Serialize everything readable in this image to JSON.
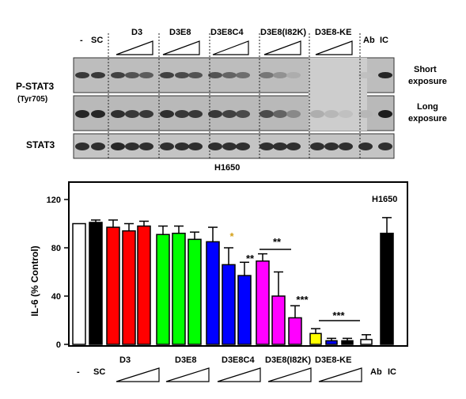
{
  "blot": {
    "lane_header": {
      "neg": "-",
      "sc": "SC",
      "groups": [
        "D3",
        "D3E8",
        "D3E8C4",
        "D3E8(I82K)",
        "D3E8-KE"
      ],
      "ab": "Ab",
      "ic": "IC"
    },
    "row_labels": {
      "pstat3": "P-STAT3",
      "tyr": "(Tyr705)",
      "stat3": "STAT3"
    },
    "exposure_labels": {
      "short_1": "Short",
      "short_2": "exposure",
      "long_1": "Long",
      "long_2": "exposure"
    },
    "cell_line": "H1650",
    "lanes": [
      "-",
      "SC",
      "D3",
      "D3",
      "D3",
      "D3E8",
      "D3E8",
      "D3E8",
      "D3E8C4",
      "D3E8C4",
      "D3E8C4",
      "D3E8(I82K)",
      "D3E8(I82K)",
      "D3E8(I82K)",
      "D3E8-KE",
      "D3E8-KE",
      "D3E8-KE",
      "Ab",
      "IC"
    ],
    "pstat3_short_intensity": [
      0.8,
      0.8,
      0.75,
      0.65,
      0.6,
      0.75,
      0.7,
      0.65,
      0.65,
      0.55,
      0.5,
      0.45,
      0.3,
      0.15,
      0.0,
      0.0,
      0.0,
      0.05,
      0.9
    ],
    "pstat3_long_intensity": [
      0.9,
      0.9,
      0.85,
      0.8,
      0.8,
      0.85,
      0.8,
      0.8,
      0.8,
      0.75,
      0.7,
      0.7,
      0.55,
      0.35,
      0.15,
      0.1,
      0.05,
      0.1,
      0.95
    ],
    "stat3_intensity": [
      0.85,
      0.85,
      0.9,
      0.85,
      0.85,
      0.85,
      0.85,
      0.85,
      0.85,
      0.85,
      0.85,
      0.85,
      0.85,
      0.85,
      0.85,
      0.85,
      0.85,
      0.85,
      0.85
    ]
  },
  "chart_data": {
    "type": "bar",
    "ylabel": "IL-6  (% Control)",
    "ylim": [
      0,
      140
    ],
    "yticks": [
      0,
      40,
      80,
      120
    ],
    "annotation": "H1650",
    "categories": [
      "-",
      "SC",
      "D3",
      "D3",
      "D3",
      "D3E8",
      "D3E8",
      "D3E8",
      "D3E8C4",
      "D3E8C4",
      "D3E8C4",
      "D3E8(I82K)",
      "D3E8(I82K)",
      "D3E8(I82K)",
      "D3E8-KE",
      "D3E8-KE",
      "D3E8-KE",
      "Ab",
      "IC"
    ],
    "values": [
      100,
      101,
      97,
      94,
      98,
      91,
      92,
      87,
      85,
      66,
      57,
      69,
      40,
      22,
      9,
      3,
      3,
      4,
      92
    ],
    "errors": [
      0,
      2,
      6,
      6,
      4,
      7,
      6,
      6,
      12,
      14,
      11,
      6,
      20,
      10,
      4,
      2,
      2,
      4,
      13
    ],
    "bar_colors": [
      "#ffffff",
      "#000000",
      "#ff0000",
      "#ff0000",
      "#ff0000",
      "#00ff00",
      "#00ff00",
      "#00ff00",
      "#0000ff",
      "#0000ff",
      "#0000ff",
      "#ff00ff",
      "#ff00ff",
      "#ff00ff",
      "#ffff00",
      "#0000ff",
      "#000000",
      "#ffffff",
      "#000000"
    ],
    "significance": [
      {
        "text": "*",
        "color": "#d4a017"
      },
      {
        "text": "**",
        "color": "#000000"
      },
      {
        "text": "**",
        "color": "#000000"
      },
      {
        "text": "***",
        "color": "#000000"
      },
      {
        "text": "***",
        "color": "#000000"
      }
    ],
    "x_group_labels": [
      "D3",
      "D3E8",
      "D3E8C4",
      "D3E8(I82K)",
      "D3E8-KE"
    ],
    "x_labels_bottom": {
      "neg": "-",
      "sc": "SC",
      "ab": "Ab",
      "ic": "IC"
    }
  }
}
